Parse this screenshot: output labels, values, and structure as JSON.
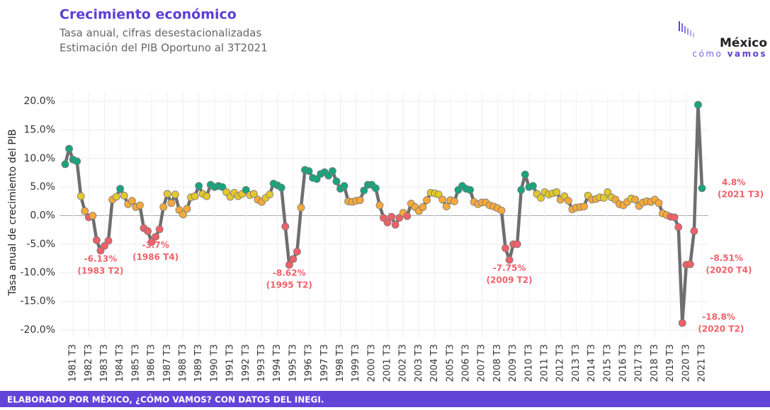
{
  "chart_data": {
    "type": "line",
    "title": "Crecimiento económico",
    "subtitle": [
      "Tasa anual, cifras desestacionalizadas",
      "Estimación del PIB Oportuno al 3T2021"
    ],
    "ylabel": "Tasa anual de crecimiento del PIB",
    "footer": "ELABORADO POR MÉXICO, ¿CÓMO VAMOS? CON DATOS DEL INEGI.",
    "logo": {
      "name": "México",
      "tagline_1": "cómo",
      "tagline_2": "vamos"
    },
    "ylim": [
      -21.5,
      21.5
    ],
    "yticks": [
      {
        "value": 20,
        "label": "20.0%"
      },
      {
        "value": 15,
        "label": "15.0%"
      },
      {
        "value": 10,
        "label": "10.0%"
      },
      {
        "value": 5,
        "label": "5.0%"
      },
      {
        "value": 0,
        "label": "0.0%"
      },
      {
        "value": -5,
        "label": "-5.0%"
      },
      {
        "value": -10,
        "label": "-10.0%"
      },
      {
        "value": -15,
        "label": "-15.0%"
      },
      {
        "value": -20,
        "label": "-20.0%"
      }
    ],
    "grid": true,
    "line_color": "#6e6e6e",
    "zero_line_color": "#aaaaaa",
    "color_scale": {
      "thresholds": [
        0,
        3,
        4.3
      ],
      "colors": [
        "#ef6068",
        "#f6a93b",
        "#e4c82d",
        "#16a57d"
      ]
    },
    "label_color": "#f0616a",
    "categories": [
      null,
      null,
      "1981 T3",
      null,
      null,
      null,
      "1982 T3",
      null,
      null,
      null,
      "1983 T3",
      null,
      null,
      null,
      "1984 T3",
      null,
      null,
      null,
      "1985 T3",
      null,
      null,
      null,
      "1986 T3",
      null,
      null,
      null,
      "1987 T3",
      null,
      null,
      null,
      "1988 T3",
      null,
      null,
      null,
      "1989 T3",
      null,
      null,
      null,
      "1990 T3",
      null,
      null,
      null,
      "1991 T3",
      null,
      null,
      null,
      "1992 T3",
      null,
      null,
      null,
      "1993 T3",
      null,
      null,
      null,
      "1994 T3",
      null,
      null,
      null,
      "1995 T3",
      null,
      null,
      null,
      "1996 T3",
      null,
      null,
      null,
      "1997 T3",
      null,
      null,
      null,
      "1998 T3",
      null,
      null,
      null,
      "1999 T3",
      null,
      null,
      null,
      "2000 T3",
      null,
      null,
      null,
      "2001 T3",
      null,
      null,
      null,
      "2002 T3",
      null,
      null,
      null,
      "2003 T3",
      null,
      null,
      null,
      "2004 T3",
      null,
      null,
      null,
      "2005 T3",
      null,
      null,
      null,
      "2006 T3",
      null,
      null,
      null,
      "2007 T3",
      null,
      null,
      null,
      "2008 T3",
      null,
      null,
      null,
      "2009 T3",
      null,
      null,
      null,
      "2010 T3",
      null,
      null,
      null,
      "2011 T3",
      null,
      null,
      null,
      "2012 T3",
      null,
      null,
      null,
      "2013 T3",
      null,
      null,
      null,
      "2014 T3",
      null,
      null,
      null,
      "2015 T3",
      null,
      null,
      null,
      "2016 T3",
      null,
      null,
      null,
      "2017 T3",
      null,
      null,
      null,
      "2018 T3",
      null,
      null,
      null,
      "2019 T3",
      null,
      null,
      null,
      "2020 T3",
      null,
      null,
      null,
      "2021 T3"
    ],
    "values": [
      9.0,
      11.7,
      9.8,
      9.5,
      3.4,
      0.8,
      -0.3,
      0.0,
      -4.3,
      -6.13,
      -5.3,
      -4.4,
      2.8,
      3.3,
      4.7,
      3.5,
      2.0,
      2.6,
      1.5,
      1.8,
      -2.2,
      -2.7,
      -4.6,
      -3.7,
      -2.4,
      1.5,
      3.8,
      2.2,
      3.7,
      1.0,
      0.2,
      1.2,
      3.2,
      3.4,
      5.2,
      3.8,
      3.4,
      5.4,
      5.0,
      5.2,
      5.0,
      4.1,
      3.3,
      4.0,
      3.4,
      3.8,
      4.5,
      3.6,
      3.8,
      2.8,
      2.4,
      3.1,
      3.7,
      5.6,
      5.3,
      4.9,
      -1.9,
      -8.62,
      -7.6,
      -6.3,
      1.4,
      8.0,
      7.8,
      6.6,
      6.4,
      7.3,
      7.6,
      7.0,
      7.8,
      6.0,
      4.7,
      5.2,
      2.5,
      2.4,
      2.6,
      2.7,
      4.4,
      5.4,
      5.4,
      4.8,
      1.8,
      -0.4,
      -1.2,
      -0.2,
      -1.6,
      -0.4,
      0.5,
      -0.1,
      2.1,
      1.5,
      0.8,
      1.5,
      2.7,
      4.0,
      3.9,
      3.7,
      2.8,
      1.6,
      2.7,
      2.5,
      4.5,
      5.2,
      4.7,
      4.5,
      2.4,
      2.0,
      2.3,
      2.3,
      1.8,
      1.6,
      1.3,
      0.9,
      -5.7,
      -7.75,
      -5.0,
      -5.0,
      4.5,
      7.2,
      5.0,
      5.2,
      3.8,
      3.1,
      4.1,
      3.7,
      3.9,
      4.1,
      2.8,
      3.4,
      2.6,
      1.1,
      1.4,
      1.5,
      1.6,
      3.5,
      2.8,
      2.9,
      3.2,
      3.1,
      4.1,
      3.2,
      2.8,
      2.0,
      1.8,
      2.4,
      3.0,
      2.8,
      1.7,
      2.3,
      2.5,
      2.4,
      2.8,
      2.2,
      0.4,
      0.1,
      -0.2,
      -0.3,
      -2.0,
      -18.8,
      -8.6,
      -8.51,
      -2.7,
      19.4,
      4.8
    ],
    "value_labels": [
      null,
      null,
      null,
      null,
      null,
      null,
      null,
      null,
      null,
      "-6.13%",
      null,
      null,
      null,
      null,
      null,
      null,
      null,
      null,
      null,
      null,
      null,
      null,
      null,
      "-3.7%",
      null,
      null,
      null,
      null,
      null,
      null,
      null,
      null,
      null,
      null,
      null,
      null,
      null,
      null,
      null,
      null,
      null,
      null,
      null,
      null,
      null,
      null,
      null,
      null,
      null,
      null,
      null,
      null,
      null,
      null,
      null,
      null,
      null,
      "-8.62%",
      null,
      null,
      null,
      null,
      null,
      null,
      null,
      null,
      null,
      null,
      null,
      null,
      null,
      null,
      null,
      null,
      null,
      null,
      null,
      null,
      null,
      null,
      null,
      null,
      null,
      null,
      null,
      null,
      null,
      null,
      null,
      null,
      null,
      null,
      null,
      null,
      null,
      null,
      null,
      null,
      null,
      null,
      null,
      null,
      null,
      null,
      null,
      null,
      null,
      null,
      null,
      null,
      null,
      null,
      null,
      "-7.75%",
      null,
      null,
      null,
      null,
      null,
      null,
      null,
      null,
      null,
      null,
      null,
      null,
      null,
      null,
      null,
      null,
      null,
      null,
      null,
      null,
      null,
      null,
      null,
      null,
      null,
      null,
      null,
      null,
      null,
      null,
      null,
      null,
      null,
      null,
      null,
      null,
      null,
      null,
      null,
      null,
      null,
      null,
      null,
      "-18.8%",
      null,
      "-8.51%",
      null,
      null,
      "4.8%"
    ],
    "value_notes": [
      null,
      null,
      null,
      null,
      null,
      null,
      null,
      null,
      null,
      "(1983 T2)",
      null,
      null,
      null,
      null,
      null,
      null,
      null,
      null,
      null,
      null,
      null,
      null,
      null,
      "(1986 T4)",
      null,
      null,
      null,
      null,
      null,
      null,
      null,
      null,
      null,
      null,
      null,
      null,
      null,
      null,
      null,
      null,
      null,
      null,
      null,
      null,
      null,
      null,
      null,
      null,
      null,
      null,
      null,
      null,
      null,
      null,
      null,
      null,
      null,
      "(1995 T2)",
      null,
      null,
      null,
      null,
      null,
      null,
      null,
      null,
      null,
      null,
      null,
      null,
      null,
      null,
      null,
      null,
      null,
      null,
      null,
      null,
      null,
      null,
      null,
      null,
      null,
      null,
      null,
      null,
      null,
      null,
      null,
      null,
      null,
      null,
      null,
      null,
      null,
      null,
      null,
      null,
      null,
      null,
      null,
      null,
      null,
      null,
      null,
      null,
      null,
      null,
      null,
      null,
      null,
      null,
      null,
      "(2009 T2)",
      null,
      null,
      null,
      null,
      null,
      null,
      null,
      null,
      null,
      null,
      null,
      null,
      null,
      null,
      null,
      null,
      null,
      null,
      null,
      null,
      null,
      null,
      null,
      null,
      null,
      null,
      null,
      null,
      null,
      null,
      null,
      null,
      null,
      null,
      null,
      null,
      null,
      null,
      null,
      null,
      null,
      null,
      null,
      "(2020 T2)",
      null,
      "(2020 T4)",
      null,
      null,
      "(2021 T3)"
    ]
  }
}
